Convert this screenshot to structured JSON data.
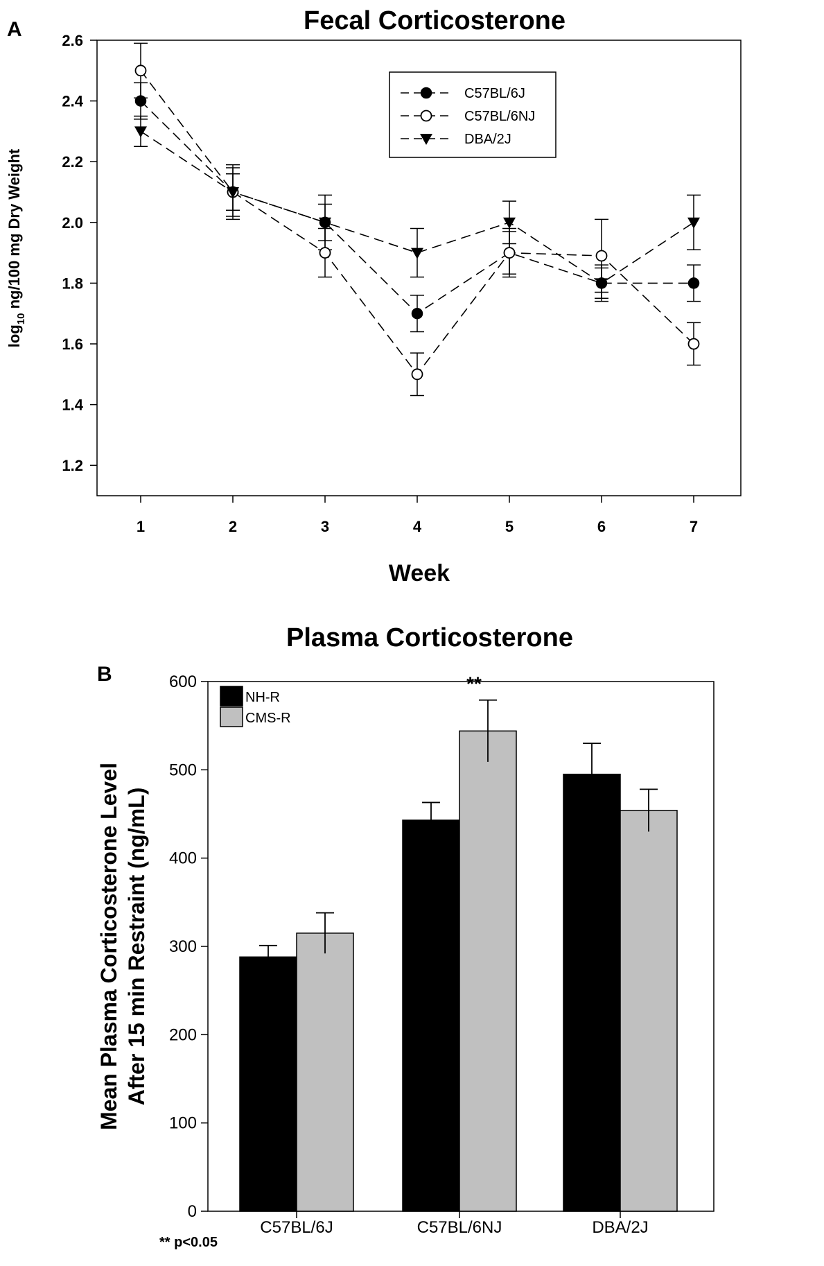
{
  "chart_data": [
    {
      "panel": "A",
      "type": "line",
      "title": "Fecal Corticosterone",
      "xlabel": "Week",
      "ylabel": {
        "prefix": "log",
        "sub": "10",
        "suffix": " ng/100 mg Dry Weight"
      },
      "x": [
        1,
        2,
        3,
        4,
        5,
        6,
        7
      ],
      "xticklabels": [
        "1",
        "2",
        "3",
        "4",
        "5",
        "6",
        "7"
      ],
      "ylim": [
        1.1,
        2.6
      ],
      "yticks": [
        1.2,
        1.4,
        1.6,
        1.8,
        2.0,
        2.2,
        2.4,
        2.6
      ],
      "yticklabels": [
        "1.2",
        "1.4",
        "1.6",
        "1.8",
        "2.0",
        "2.2",
        "2.4",
        "2.6"
      ],
      "series": [
        {
          "name": "C57BL/6J",
          "marker": "filled-circle",
          "values": [
            2.4,
            2.1,
            2.0,
            1.7,
            1.9,
            1.8,
            1.8
          ],
          "errors": [
            0.06,
            0.08,
            0.06,
            0.06,
            0.07,
            0.06,
            0.06
          ]
        },
        {
          "name": "C57BL/6NJ",
          "marker": "open-circle",
          "values": [
            2.5,
            2.1,
            1.9,
            1.5,
            1.9,
            1.89,
            1.6
          ],
          "errors": [
            0.09,
            0.09,
            0.08,
            0.07,
            0.08,
            0.12,
            0.07
          ]
        },
        {
          "name": "DBA/2J",
          "marker": "filled-triangle-down",
          "values": [
            2.3,
            2.1,
            2.0,
            1.9,
            2.0,
            1.8,
            2.0
          ],
          "errors": [
            0.05,
            0.06,
            0.09,
            0.08,
            0.07,
            0.05,
            0.09
          ]
        }
      ],
      "legend": "top-right"
    },
    {
      "panel": "B",
      "type": "bar",
      "title": "Plasma Corticosterone",
      "ylabel_lines": [
        "Mean Plasma Corticosterone Level",
        "After 15 min Restraint (ng/mL)"
      ],
      "categories": [
        "C57BL/6J",
        "C57BL/6NJ",
        "DBA/2J"
      ],
      "ylim": [
        0,
        600
      ],
      "yticks": [
        0,
        100,
        200,
        300,
        400,
        500,
        600
      ],
      "yticklabels": [
        "0",
        "100",
        "200",
        "300",
        "400",
        "500",
        "600"
      ],
      "series": [
        {
          "name": "NH-R",
          "color": "#000000",
          "values": [
            288,
            443,
            495
          ],
          "errors": [
            13,
            20,
            35
          ]
        },
        {
          "name": "CMS-R",
          "color": "#c0c0c0",
          "values": [
            315,
            544,
            454
          ],
          "errors": [
            23,
            35,
            24
          ]
        }
      ],
      "annotation": {
        "text": "**",
        "category_index": 1
      },
      "footnote": "** p<0.05",
      "legend": "top-left"
    }
  ]
}
